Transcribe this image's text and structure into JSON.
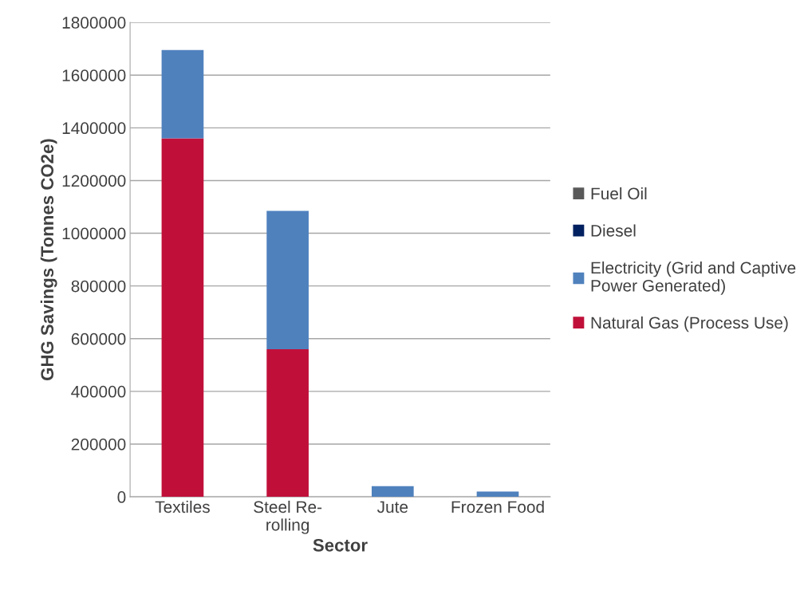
{
  "chart_data": {
    "type": "bar",
    "stacked": true,
    "xlabel": "Sector",
    "ylabel": "GHG Savings (Tonnes CO2e)",
    "categories": [
      "Textiles",
      "Steel Re-\nrolling",
      "Jute",
      "Frozen Food"
    ],
    "series": [
      {
        "name": "Natural Gas (Process Use)",
        "color": "#c0103a",
        "values": [
          1360000,
          560000,
          0,
          0
        ]
      },
      {
        "name": "Electricity (Grid and Captive\nPower Generated)",
        "color": "#4f81bd",
        "values": [
          335000,
          525000,
          40000,
          20000
        ]
      },
      {
        "name": "Diesel",
        "color": "#002060",
        "values": [
          0,
          0,
          0,
          0
        ]
      },
      {
        "name": "Fuel Oil",
        "color": "#595959",
        "values": [
          0,
          0,
          0,
          0
        ]
      }
    ],
    "ylim": [
      0,
      1800000
    ],
    "yticks": [
      0,
      200000,
      400000,
      600000,
      800000,
      1000000,
      1200000,
      1400000,
      1600000,
      1800000
    ],
    "grid": "y",
    "legend": "right"
  }
}
